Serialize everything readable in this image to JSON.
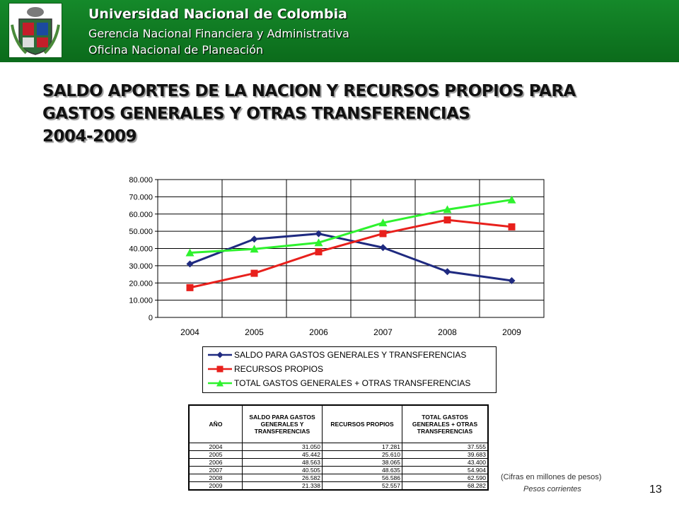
{
  "header": {
    "line1": "Universidad Nacional de Colombia",
    "line2": "Gerencia Nacional Financiera y Administrativa",
    "line3": "Oficina Nacional de Planeación"
  },
  "title": {
    "line1": "SALDO APORTES DE LA NACION Y RECURSOS PROPIOS PARA",
    "line2": "GASTOS GENERALES Y OTRAS TRANSFERENCIAS",
    "line3": "2004-2009"
  },
  "chart_data": {
    "type": "line",
    "x": [
      "2004",
      "2005",
      "2006",
      "2007",
      "2008",
      "2009"
    ],
    "ylim": [
      0,
      80000
    ],
    "ytick_labels": [
      "0",
      "10.000",
      "20.000",
      "30.000",
      "40.000",
      "50.000",
      "60.000",
      "70.000",
      "80.000"
    ],
    "grid": true,
    "legend_position": "bottom",
    "series": [
      {
        "name": "SALDO PARA GASTOS GENERALES Y TRANSFERENCIAS",
        "color": "#1f2a80",
        "marker": "diamond",
        "values": [
          31050,
          45442,
          48563,
          40505,
          26582,
          21338
        ]
      },
      {
        "name": "RECURSOS PROPIOS",
        "color": "#e8201c",
        "marker": "square",
        "values": [
          17281,
          25610,
          38065,
          48635,
          56586,
          52557
        ]
      },
      {
        "name": "TOTAL GASTOS GENERALES + OTRAS TRANSFERENCIAS",
        "color": "#2ef22e",
        "marker": "triangle",
        "values": [
          37555,
          39683,
          43400,
          54904,
          62590,
          68282
        ]
      }
    ]
  },
  "table": {
    "headers": [
      "AÑO",
      "SALDO PARA GASTOS GENERALES Y TRANSFERENCIAS",
      "RECURSOS PROPIOS",
      "TOTAL GASTOS GENERALES + OTRAS TRANSFERENCIAS"
    ],
    "rows": [
      [
        "2004",
        "31.050",
        "17.281",
        "37.555"
      ],
      [
        "2005",
        "45.442",
        "25.610",
        "39.683"
      ],
      [
        "2006",
        "48.563",
        "38.065",
        "43.400"
      ],
      [
        "2007",
        "40.505",
        "48.635",
        "54.904"
      ],
      [
        "2008",
        "26.582",
        "56.586",
        "62.590"
      ],
      [
        "2009",
        "21.338",
        "52.557",
        "68.282"
      ]
    ]
  },
  "notes": {
    "units": "(Cifras en millones de pesos)",
    "prices": "Pesos corrientes"
  },
  "page_number": "13"
}
